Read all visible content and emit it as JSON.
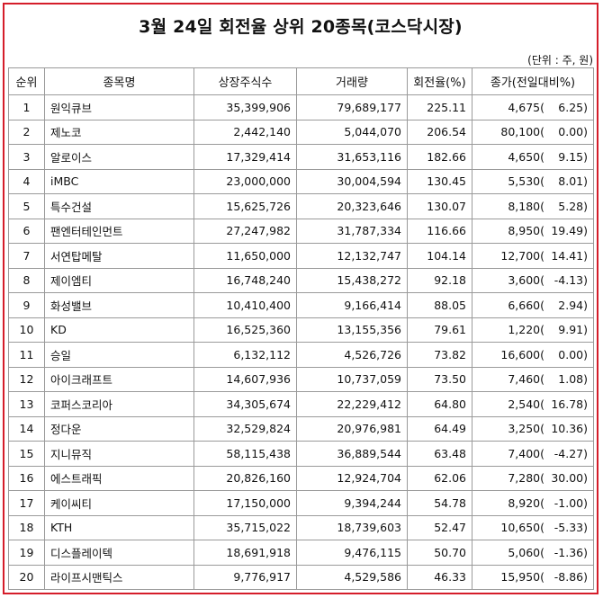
{
  "title": "3월 24일 회전율 상위 20종목(코스닥시장)",
  "unit_note": "(단위 : 주, 원)",
  "headers": {
    "rank": "순위",
    "name": "종목명",
    "listed_shares": "상장주식수",
    "volume": "거래량",
    "turnover": "회전율(%)",
    "close": "종가(전일대비%)"
  },
  "rows": [
    {
      "rank": "1",
      "name": "원익큐브",
      "listed": "35,399,906",
      "volume": "79,689,177",
      "turnover": "225.11",
      "price": "4,675(",
      "chg": "6.25)"
    },
    {
      "rank": "2",
      "name": "제노코",
      "listed": "2,442,140",
      "volume": "5,044,070",
      "turnover": "206.54",
      "price": "80,100(",
      "chg": "0.00)"
    },
    {
      "rank": "3",
      "name": "알로이스",
      "listed": "17,329,414",
      "volume": "31,653,116",
      "turnover": "182.66",
      "price": "4,650(",
      "chg": "9.15)"
    },
    {
      "rank": "4",
      "name": "iMBC",
      "listed": "23,000,000",
      "volume": "30,004,594",
      "turnover": "130.45",
      "price": "5,530(",
      "chg": "8.01)"
    },
    {
      "rank": "5",
      "name": "특수건설",
      "listed": "15,625,726",
      "volume": "20,323,646",
      "turnover": "130.07",
      "price": "8,180(",
      "chg": "5.28)"
    },
    {
      "rank": "6",
      "name": "팬엔터테인먼트",
      "listed": "27,247,982",
      "volume": "31,787,334",
      "turnover": "116.66",
      "price": "8,950(",
      "chg": "19.49)"
    },
    {
      "rank": "7",
      "name": "서연탑메탈",
      "listed": "11,650,000",
      "volume": "12,132,747",
      "turnover": "104.14",
      "price": "12,700(",
      "chg": "14.41)"
    },
    {
      "rank": "8",
      "name": "제이엠티",
      "listed": "16,748,240",
      "volume": "15,438,272",
      "turnover": "92.18",
      "price": "3,600(",
      "chg": "-4.13)"
    },
    {
      "rank": "9",
      "name": "화성밸브",
      "listed": "10,410,400",
      "volume": "9,166,414",
      "turnover": "88.05",
      "price": "6,660(",
      "chg": "2.94)"
    },
    {
      "rank": "10",
      "name": "KD",
      "listed": "16,525,360",
      "volume": "13,155,356",
      "turnover": "79.61",
      "price": "1,220(",
      "chg": "9.91)"
    },
    {
      "rank": "11",
      "name": "승일",
      "listed": "6,132,112",
      "volume": "4,526,726",
      "turnover": "73.82",
      "price": "16,600(",
      "chg": "0.00)"
    },
    {
      "rank": "12",
      "name": "아이크래프트",
      "listed": "14,607,936",
      "volume": "10,737,059",
      "turnover": "73.50",
      "price": "7,460(",
      "chg": "1.08)"
    },
    {
      "rank": "13",
      "name": "코퍼스코리아",
      "listed": "34,305,674",
      "volume": "22,229,412",
      "turnover": "64.80",
      "price": "2,540(",
      "chg": "16.78)"
    },
    {
      "rank": "14",
      "name": "정다운",
      "listed": "32,529,824",
      "volume": "20,976,981",
      "turnover": "64.49",
      "price": "3,250(",
      "chg": "10.36)"
    },
    {
      "rank": "15",
      "name": "지니뮤직",
      "listed": "58,115,438",
      "volume": "36,889,544",
      "turnover": "63.48",
      "price": "7,400(",
      "chg": "-4.27)"
    },
    {
      "rank": "16",
      "name": "에스트래픽",
      "listed": "20,826,160",
      "volume": "12,924,704",
      "turnover": "62.06",
      "price": "7,280(",
      "chg": "30.00)"
    },
    {
      "rank": "17",
      "name": "케이씨티",
      "listed": "17,150,000",
      "volume": "9,394,244",
      "turnover": "54.78",
      "price": "8,920(",
      "chg": "-1.00)"
    },
    {
      "rank": "18",
      "name": "KTH",
      "listed": "35,715,022",
      "volume": "18,739,603",
      "turnover": "52.47",
      "price": "10,650(",
      "chg": "-5.33)"
    },
    {
      "rank": "19",
      "name": "디스플레이텍",
      "listed": "18,691,918",
      "volume": "9,476,115",
      "turnover": "50.70",
      "price": "5,060(",
      "chg": "-1.36)"
    },
    {
      "rank": "20",
      "name": "라이프시맨틱스",
      "listed": "9,776,917",
      "volume": "4,529,586",
      "turnover": "46.33",
      "price": "15,950(",
      "chg": "-8.86)"
    }
  ]
}
